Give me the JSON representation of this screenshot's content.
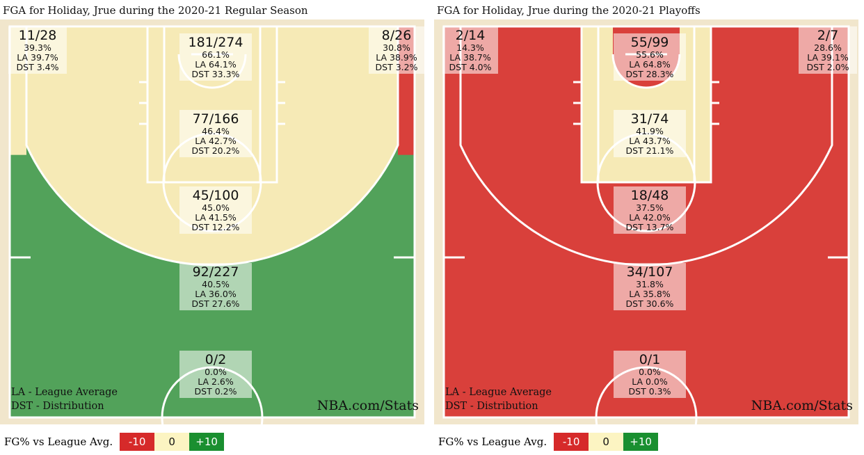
{
  "colors": {
    "green": "#52a25a",
    "red": "#d9403b",
    "yellow": "#f6eab6",
    "line": "#ffffff",
    "border": "#f1e6cc"
  },
  "scale": {
    "label": "FG% vs League Avg.",
    "neg": "-10",
    "mid": "0",
    "pos": "+10",
    "neg_color": "#d62a2a",
    "mid_color": "#fcf4c2",
    "pos_color": "#1a8f30"
  },
  "panels": [
    {
      "title": "FGA for Holiday, Jrue during the 2020-21 Regular Season",
      "legend_la": "LA - League Average",
      "legend_dst": "DST - Distribution",
      "brand": "NBA.com/Stats",
      "zones": {
        "left_corner": {
          "fga": "11/28",
          "pct": "39.3%",
          "la": "LA 39.7%",
          "dst": "DST 3.4%",
          "color": "yellow"
        },
        "right_corner": {
          "fga": "8/26",
          "pct": "30.8%",
          "la": "LA 38.9%",
          "dst": "DST 3.2%",
          "color": "red"
        },
        "restricted": {
          "fga": "181/274",
          "pct": "66.1%",
          "la": "LA 64.1%",
          "dst": "DST 33.3%",
          "color": "yellow"
        },
        "paint": {
          "fga": "77/166",
          "pct": "46.4%",
          "la": "LA 42.7%",
          "dst": "DST 20.2%",
          "color": "yellow"
        },
        "midrange": {
          "fga": "45/100",
          "pct": "45.0%",
          "la": "LA 41.5%",
          "dst": "DST 12.2%",
          "color": "yellow"
        },
        "above_break": {
          "fga": "92/227",
          "pct": "40.5%",
          "la": "LA 36.0%",
          "dst": "DST 27.6%",
          "color": "green"
        },
        "backcourt": {
          "fga": "0/2",
          "pct": "0.0%",
          "la": "LA 2.6%",
          "dst": "DST 0.2%",
          "color": "green"
        }
      }
    },
    {
      "title": "FGA for Holiday, Jrue during the 2020-21 Playoffs",
      "legend_la": "LA - League Average",
      "legend_dst": "DST - Distribution",
      "brand": "NBA.com/Stats",
      "zones": {
        "left_corner": {
          "fga": "2/14",
          "pct": "14.3%",
          "la": "LA 38.7%",
          "dst": "DST 4.0%",
          "color": "red"
        },
        "right_corner": {
          "fga": "2/7",
          "pct": "28.6%",
          "la": "LA 39.1%",
          "dst": "DST 2.0%",
          "color": "red"
        },
        "restricted": {
          "fga": "55/99",
          "pct": "55.6%",
          "la": "LA 64.8%",
          "dst": "DST 28.3%",
          "color": "red"
        },
        "paint": {
          "fga": "31/74",
          "pct": "41.9%",
          "la": "LA 43.7%",
          "dst": "DST 21.1%",
          "color": "yellow"
        },
        "midrange": {
          "fga": "18/48",
          "pct": "37.5%",
          "la": "LA 42.0%",
          "dst": "DST 13.7%",
          "color": "red"
        },
        "above_break": {
          "fga": "34/107",
          "pct": "31.8%",
          "la": "LA 35.8%",
          "dst": "DST 30.6%",
          "color": "red"
        },
        "backcourt": {
          "fga": "0/1",
          "pct": "0.0%",
          "la": "LA 0.0%",
          "dst": "DST 0.3%",
          "color": "red"
        }
      }
    }
  ]
}
